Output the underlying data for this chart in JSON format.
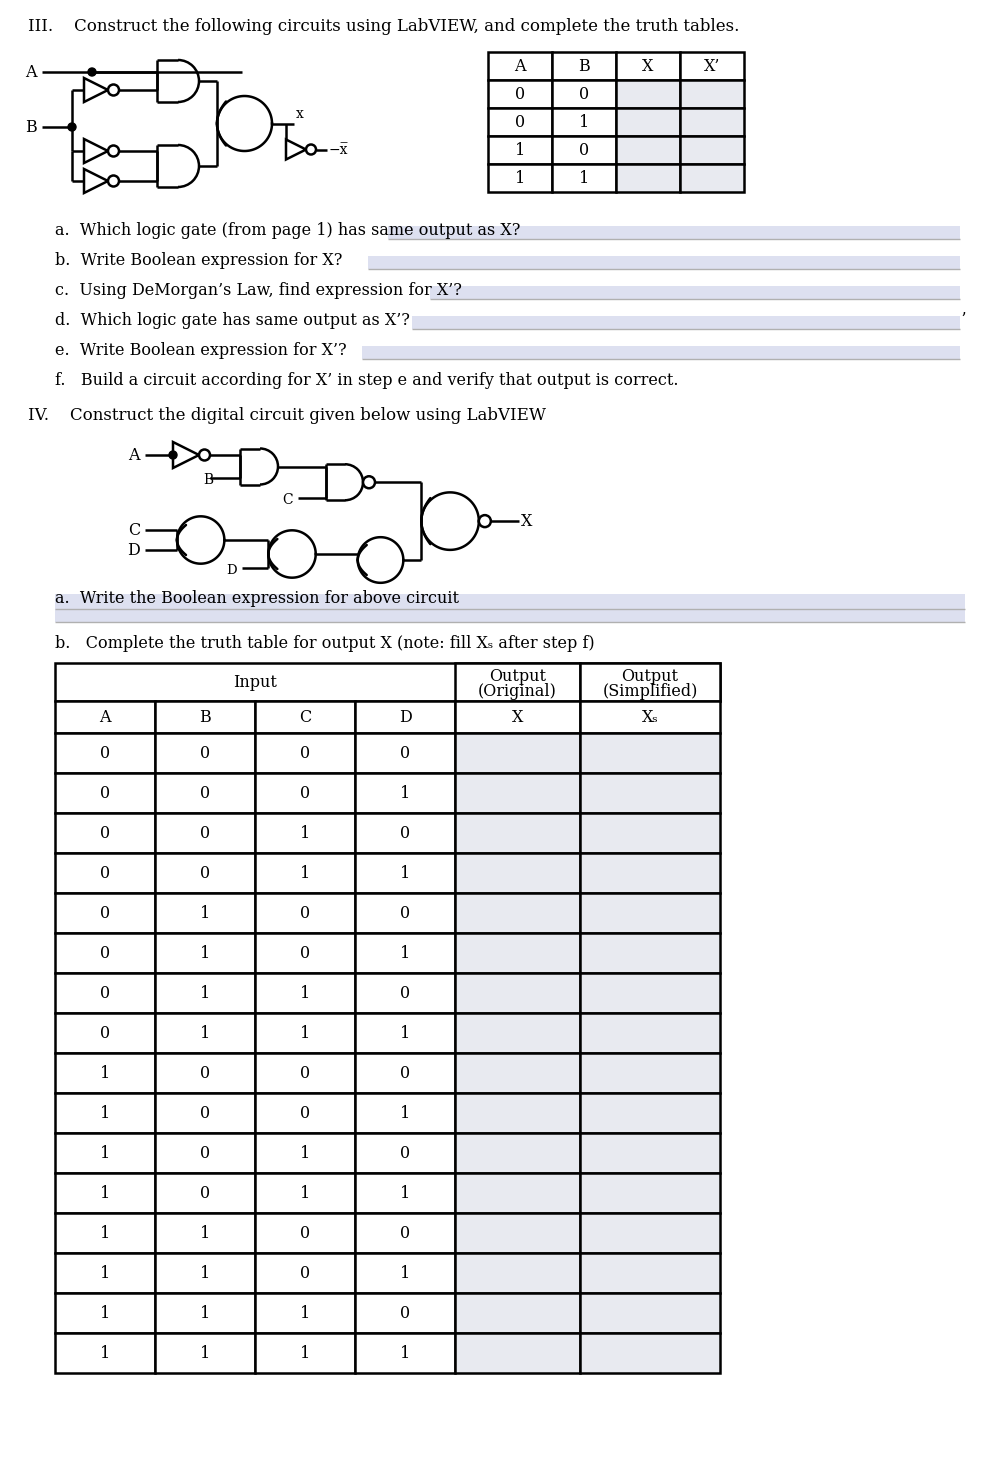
{
  "title_III": "III.    Construct the following circuits using LabVIEW, and complete the truth tables.",
  "title_IV": "IV.    Construct the digital circuit given below using LabVIEW",
  "questions_III": [
    [
      "a.",
      "  Which logic gate (from page 1) has same output as X?",
      true
    ],
    [
      "b.",
      "  Write Boolean expression for X?",
      true
    ],
    [
      "c.",
      "  Using DeMorgan’s Law, find expression for X’?",
      true
    ],
    [
      "d.",
      "  Which logic gate has same output as X’?",
      true
    ],
    [
      "e.",
      "  Write Boolean expression for X’?",
      true
    ],
    [
      "f.",
      "   Build a circuit according for X’ in step e and verify that output is correct.",
      false
    ]
  ],
  "question_IVa_prefix": "a.",
  "question_IVa_text": "  Write the Boolean expression for above circuit",
  "question_IVb": "b.   Complete the truth table for output X (note: fill Xₛ after step f)",
  "truth_table_III_headers": [
    "A",
    "B",
    "X",
    "X’"
  ],
  "truth_table_III_data": [
    [
      "0",
      "0",
      "",
      ""
    ],
    [
      "0",
      "1",
      "",
      ""
    ],
    [
      "1",
      "0",
      "",
      ""
    ],
    [
      "1",
      "1",
      "",
      ""
    ]
  ],
  "truth_table_IV_sub_headers": [
    "A",
    "B",
    "C",
    "D",
    "X",
    "Xₛ"
  ],
  "truth_table_IV_data": [
    [
      "0",
      "0",
      "0",
      "0",
      "",
      ""
    ],
    [
      "0",
      "0",
      "0",
      "1",
      "",
      ""
    ],
    [
      "0",
      "0",
      "1",
      "0",
      "",
      ""
    ],
    [
      "0",
      "0",
      "1",
      "1",
      "",
      ""
    ],
    [
      "0",
      "1",
      "0",
      "0",
      "",
      ""
    ],
    [
      "0",
      "1",
      "0",
      "1",
      "",
      ""
    ],
    [
      "0",
      "1",
      "1",
      "0",
      "",
      ""
    ],
    [
      "0",
      "1",
      "1",
      "1",
      "",
      ""
    ],
    [
      "1",
      "0",
      "0",
      "0",
      "",
      ""
    ],
    [
      "1",
      "0",
      "0",
      "1",
      "",
      ""
    ],
    [
      "1",
      "0",
      "1",
      "0",
      "",
      ""
    ],
    [
      "1",
      "0",
      "1",
      "1",
      "",
      ""
    ],
    [
      "1",
      "1",
      "0",
      "0",
      "",
      ""
    ],
    [
      "1",
      "1",
      "0",
      "1",
      "",
      ""
    ],
    [
      "1",
      "1",
      "1",
      "0",
      "",
      ""
    ],
    [
      "1",
      "1",
      "1",
      "1",
      "",
      ""
    ]
  ],
  "bg_color": "#ffffff",
  "table_fill_color": "#e8eaf0",
  "text_color": "#000000",
  "answer_bg_color": "#dde0f0"
}
